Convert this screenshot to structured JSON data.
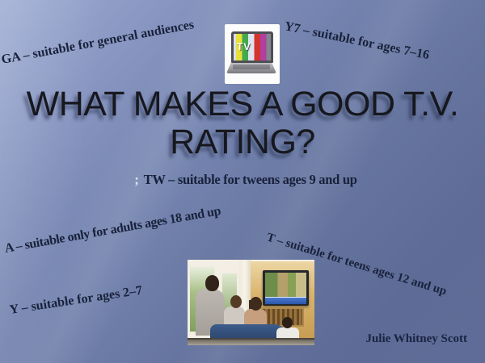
{
  "slide": {
    "title_line1": "WHAT MAKES A GOOD T.V.",
    "title_line2": "RATING?",
    "author": "Julie Whitney Scott"
  },
  "ratings": {
    "ga": "GA – suitable for general audiences",
    "y7": "Y7 – suitable for ages 7–16",
    "tw_prefix": ";",
    "tw": "TW – suitable for tweens ages 9 and up",
    "a": "A – suitable only for adults ages 18 and up",
    "t": "T – suitable for teens ages 12 and up",
    "y": "Y – suitable for ages 2–7"
  },
  "icons": {
    "laptop_tv_screen_text": "TV"
  },
  "colors": {
    "background_top_left": "#9dabd3",
    "background_bottom_right": "#5f6c97",
    "rating_text": "#19213b",
    "title_text": "#17181f",
    "semicolon_light": "#dde4f2"
  }
}
